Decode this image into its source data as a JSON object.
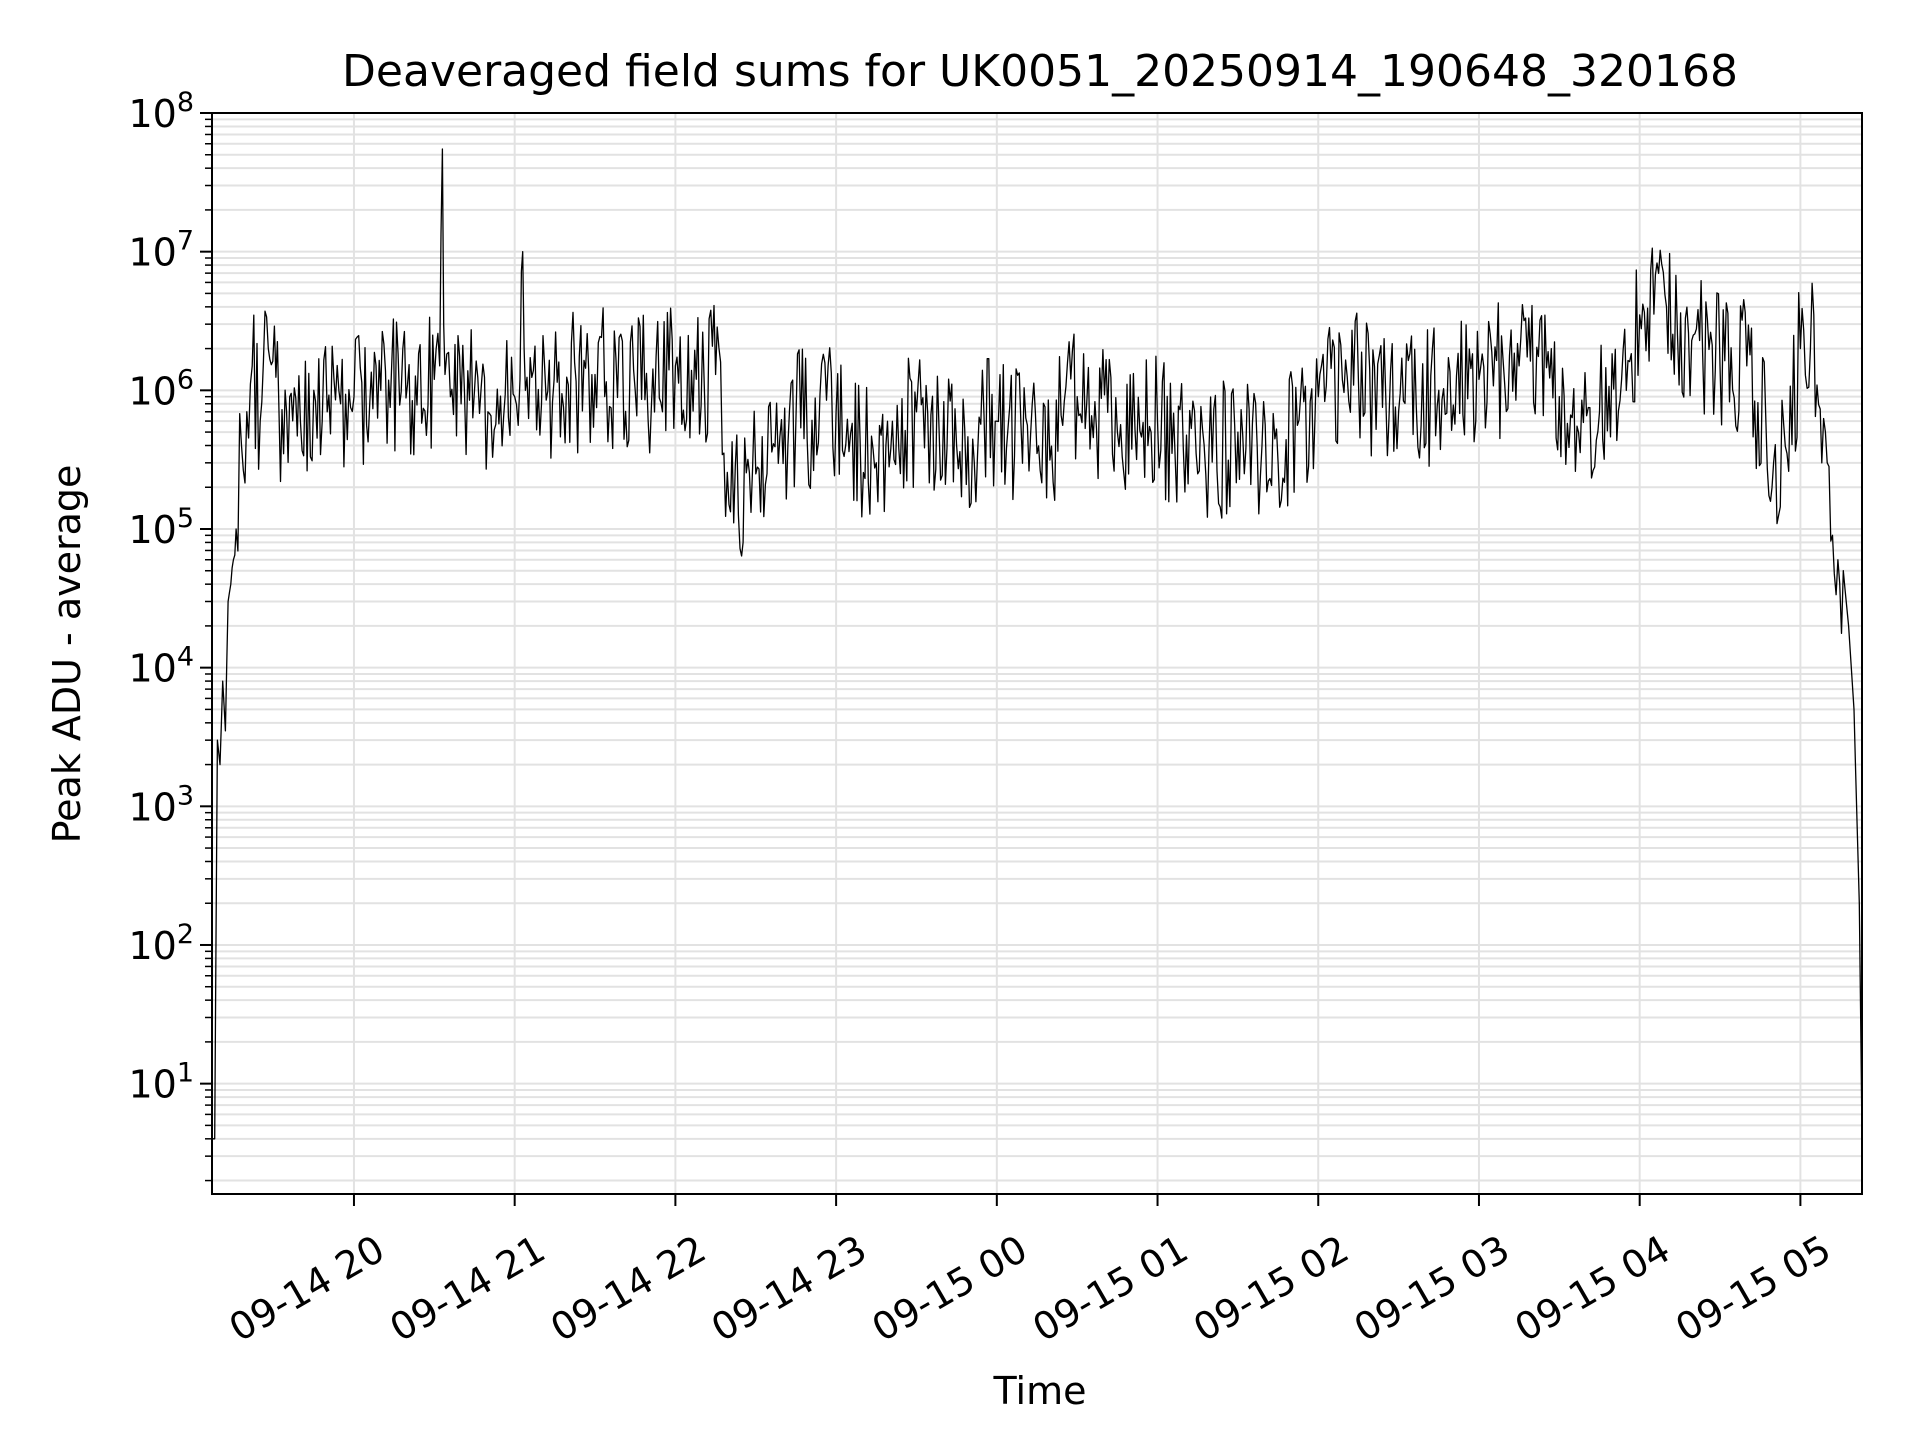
{
  "chart_data": {
    "type": "line",
    "title": "Deaveraged field sums for UK0051_20250914_190648_320168",
    "xlabel": "Time",
    "ylabel": "Peak ADU - average",
    "yscale": "log",
    "xlim": [
      "2025-09-14T19:07",
      "2025-09-15T05:23"
    ],
    "ylim": [
      1.6,
      100000000
    ],
    "grid": true,
    "x_ticks": [
      {
        "value": "2025-09-14T20:00",
        "label": "09-14 20"
      },
      {
        "value": "2025-09-14T21:00",
        "label": "09-14 21"
      },
      {
        "value": "2025-09-14T22:00",
        "label": "09-14 22"
      },
      {
        "value": "2025-09-14T23:00",
        "label": "09-14 23"
      },
      {
        "value": "2025-09-15T00:00",
        "label": "09-15 00"
      },
      {
        "value": "2025-09-15T01:00",
        "label": "09-15 01"
      },
      {
        "value": "2025-09-15T02:00",
        "label": "09-15 02"
      },
      {
        "value": "2025-09-15T03:00",
        "label": "09-15 03"
      },
      {
        "value": "2025-09-15T04:00",
        "label": "09-15 04"
      },
      {
        "value": "2025-09-15T05:00",
        "label": "09-15 05"
      }
    ],
    "y_ticks": [
      {
        "value": 10,
        "base": "10",
        "exp": "1"
      },
      {
        "value": 100,
        "base": "10",
        "exp": "2"
      },
      {
        "value": 1000,
        "base": "10",
        "exp": "3"
      },
      {
        "value": 10000,
        "base": "10",
        "exp": "4"
      },
      {
        "value": 100000,
        "base": "10",
        "exp": "5"
      },
      {
        "value": 1000000,
        "base": "10",
        "exp": "6"
      },
      {
        "value": 10000000,
        "base": "10",
        "exp": "7"
      },
      {
        "value": 100000000,
        "base": "10",
        "exp": "8"
      }
    ],
    "series": [
      {
        "color": "#000000",
        "x": [
          "2025-09-14T19:07",
          "2025-09-14T19:08",
          "2025-09-14T19:09",
          "2025-09-14T19:10",
          "2025-09-14T19:11",
          "2025-09-14T19:12",
          "2025-09-14T19:13",
          "2025-09-14T19:14",
          "2025-09-14T19:15",
          "2025-09-14T19:16",
          "2025-09-14T19:18",
          "2025-09-14T19:20",
          "2025-09-14T19:22",
          "2025-09-14T19:25",
          "2025-09-14T19:28",
          "2025-09-14T19:32",
          "2025-09-14T19:36",
          "2025-09-14T19:40",
          "2025-09-14T19:45",
          "2025-09-14T19:50",
          "2025-09-14T19:55",
          "2025-09-14T20:00",
          "2025-09-14T20:10",
          "2025-09-14T20:20",
          "2025-09-14T20:30",
          "2025-09-14T20:32",
          "2025-09-14T20:33",
          "2025-09-14T20:34",
          "2025-09-14T20:36",
          "2025-09-14T20:40",
          "2025-09-14T20:45",
          "2025-09-14T20:50",
          "2025-09-14T21:00",
          "2025-09-14T21:02",
          "2025-09-14T21:03",
          "2025-09-14T21:04",
          "2025-09-14T21:10",
          "2025-09-14T21:20",
          "2025-09-14T21:30",
          "2025-09-14T21:45",
          "2025-09-14T22:00",
          "2025-09-14T22:15",
          "2025-09-14T22:20",
          "2025-09-14T22:30",
          "2025-09-14T22:45",
          "2025-09-14T23:00",
          "2025-09-14T23:15",
          "2025-09-14T23:30",
          "2025-09-14T23:45",
          "2025-09-15T00:00",
          "2025-09-15T00:15",
          "2025-09-15T00:30",
          "2025-09-15T00:45",
          "2025-09-15T01:00",
          "2025-09-15T01:15",
          "2025-09-15T01:30",
          "2025-09-15T01:45",
          "2025-09-15T02:00",
          "2025-09-15T02:15",
          "2025-09-15T02:30",
          "2025-09-15T02:45",
          "2025-09-15T03:00",
          "2025-09-15T03:15",
          "2025-09-15T03:30",
          "2025-09-15T03:45",
          "2025-09-15T03:55",
          "2025-09-15T04:00",
          "2025-09-15T04:10",
          "2025-09-15T04:20",
          "2025-09-15T04:30",
          "2025-09-15T04:40",
          "2025-09-15T04:50",
          "2025-09-15T04:55",
          "2025-09-15T05:00",
          "2025-09-15T05:05",
          "2025-09-15T05:08",
          "2025-09-15T05:10",
          "2025-09-15T05:12",
          "2025-09-15T05:14",
          "2025-09-15T05:16",
          "2025-09-15T05:18",
          "2025-09-15T05:20",
          "2025-09-15T05:22",
          "2025-09-15T05:23"
        ],
        "y": [
          4,
          4,
          3000,
          2000,
          8000,
          3500,
          30000,
          40000,
          60000,
          100000,
          400000,
          700000,
          1500000,
          600000,
          2000000,
          700000,
          900000,
          600000,
          1000000,
          700000,
          800000,
          900000,
          1000000,
          1100000,
          1200000,
          1500000,
          55000000,
          1300000,
          900000,
          800000,
          1000000,
          700000,
          900000,
          1200000,
          10000000,
          1000000,
          800000,
          1100000,
          1300000,
          1000000,
          1500000,
          1300000,
          150000,
          250000,
          600000,
          700000,
          300000,
          700000,
          400000,
          600000,
          350000,
          900000,
          500000,
          600000,
          250000,
          500000,
          300000,
          900000,
          1200000,
          700000,
          1000000,
          1200000,
          1500000,
          900000,
          700000,
          1000000,
          3500000,
          4000000,
          2500000,
          1500000,
          1500000,
          300000,
          350000,
          2000000,
          3500000,
          300000,
          300000,
          90000,
          60000,
          50000,
          20000,
          5000,
          200,
          4
        ]
      }
    ]
  }
}
